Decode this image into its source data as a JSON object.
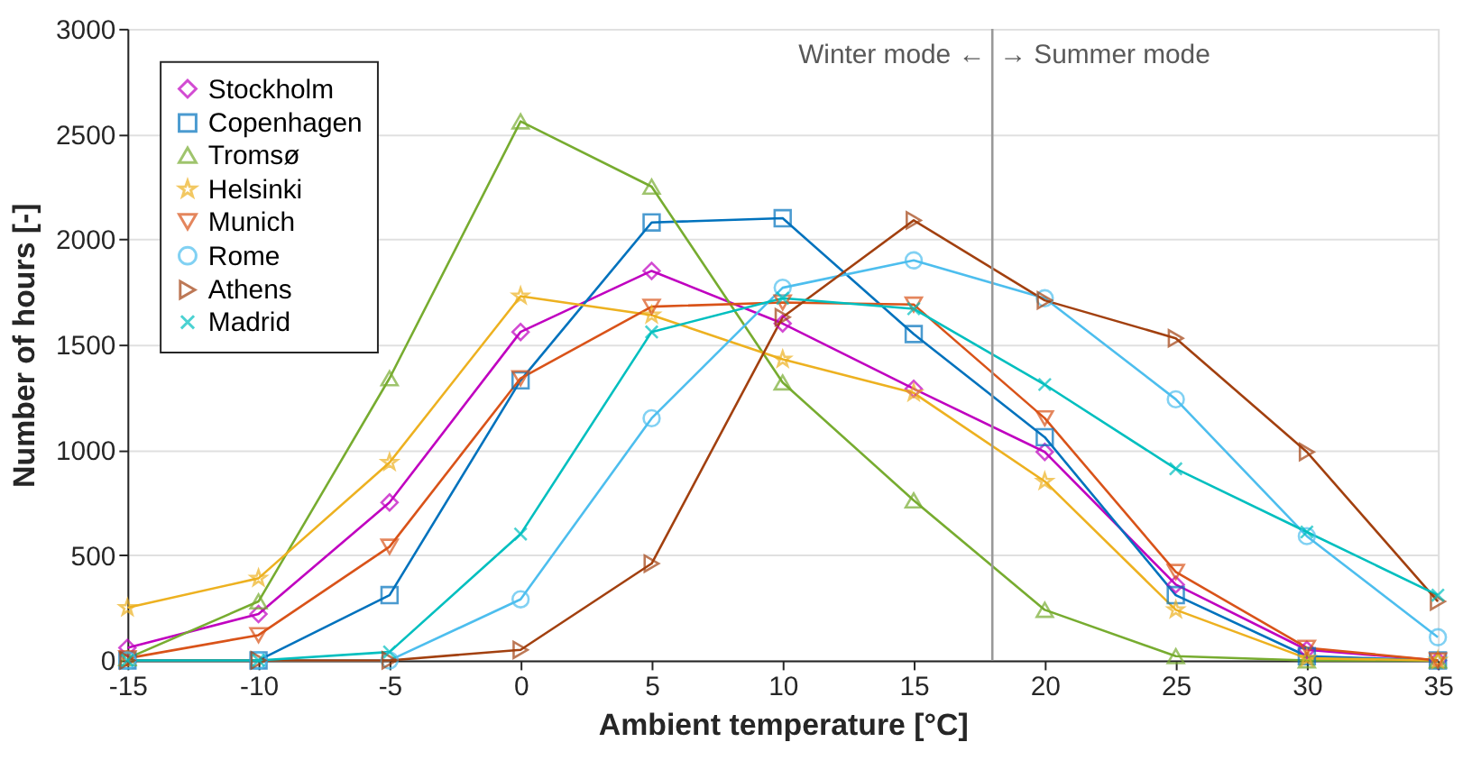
{
  "chart_data": {
    "type": "line",
    "xlabel": "Ambient temperature [°C]",
    "ylabel": "Number of hours [-]",
    "x": [
      -15,
      -10,
      -5,
      0,
      5,
      10,
      15,
      20,
      25,
      30,
      35
    ],
    "xlim": [
      -15,
      35
    ],
    "xticks": [
      -15,
      -10,
      -5,
      0,
      5,
      10,
      15,
      20,
      25,
      30,
      35
    ],
    "ylim": [
      0,
      3000
    ],
    "yticks": [
      0,
      500,
      1000,
      1500,
      2000,
      2500,
      3000
    ],
    "grid": "y",
    "legend": "top left",
    "line_style": "solid",
    "series": [
      {
        "name": "Stockholm",
        "color": "#c000c0",
        "marker": "diamond",
        "values": [
          60,
          220,
          750,
          1560,
          1850,
          1600,
          1290,
          990,
          360,
          50,
          0
        ]
      },
      {
        "name": "Copenhagen",
        "color": "#0072bd",
        "marker": "square",
        "values": [
          0,
          0,
          310,
          1330,
          2080,
          2100,
          1550,
          1060,
          310,
          20,
          0
        ]
      },
      {
        "name": "Tromsø",
        "color": "#77ac30",
        "marker": "triangle",
        "values": [
          10,
          280,
          1340,
          2560,
          2250,
          1320,
          760,
          240,
          20,
          0,
          0
        ]
      },
      {
        "name": "Helsinki",
        "color": "#edb120",
        "marker": "star",
        "values": [
          250,
          390,
          940,
          1730,
          1640,
          1430,
          1270,
          850,
          240,
          10,
          0
        ]
      },
      {
        "name": "Munich",
        "color": "#d95319",
        "marker": "triangle-down",
        "values": [
          10,
          120,
          540,
          1340,
          1680,
          1700,
          1690,
          1150,
          420,
          60,
          0
        ]
      },
      {
        "name": "Rome",
        "color": "#4dbeee",
        "marker": "circle",
        "values": [
          0,
          0,
          0,
          290,
          1150,
          1770,
          1900,
          1720,
          1240,
          590,
          110
        ]
      },
      {
        "name": "Athens",
        "color": "#a2400f",
        "marker": "triangle-right",
        "values": [
          0,
          0,
          0,
          50,
          460,
          1630,
          2090,
          1710,
          1530,
          990,
          280
        ]
      },
      {
        "name": "Madrid",
        "color": "#00bfbf",
        "marker": "cross",
        "values": [
          0,
          0,
          40,
          600,
          1560,
          1720,
          1670,
          1310,
          910,
          610,
          310
        ]
      }
    ],
    "ref_lines": [
      {
        "axis": "x",
        "value": 18,
        "color": "#999999"
      }
    ],
    "annotations": [
      "Winter mode ←",
      "→ Summer mode"
    ]
  }
}
